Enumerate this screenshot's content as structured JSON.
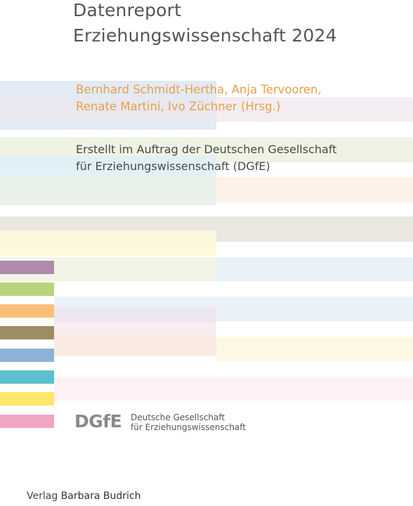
{
  "cover": {
    "title_line1": "Datenreport",
    "title_line2": "Erziehungswissenschaft 2024",
    "editors_line1": "Bernhard Schmidt-Hertha, Anja Tervooren,",
    "editors_line2": "Renate Martini, Ivo Züchner (Hrsg.)",
    "commission_line1": "Erstellt im Auftrag der Deutschen Gesellschaft",
    "commission_line2": "für Erziehungswissenschaft (DGfE)"
  },
  "logo": {
    "mark": "DGfE",
    "name_line1": "Deutsche Gesellschaft",
    "name_line2": "für Erziehungswissenschaft"
  },
  "publisher": {
    "prefix": "Verlag",
    "name": "Barbara Budrich"
  },
  "palette": {
    "swatches": [
      "#b08aab",
      "#b9d47e",
      "#fbbf7a",
      "#9b8f62",
      "#8fb1d8",
      "#5cc0cc",
      "#fde66a",
      "#f0a5c4"
    ],
    "bands": [
      "#dde6f3",
      "#ede6ee",
      "#edf2e1",
      "#dff0f6",
      "#fdf1e6",
      "#e8e6de",
      "#fdf8dc",
      "#e8f0f8",
      "#fbeaf2",
      "#f9eadf"
    ]
  }
}
